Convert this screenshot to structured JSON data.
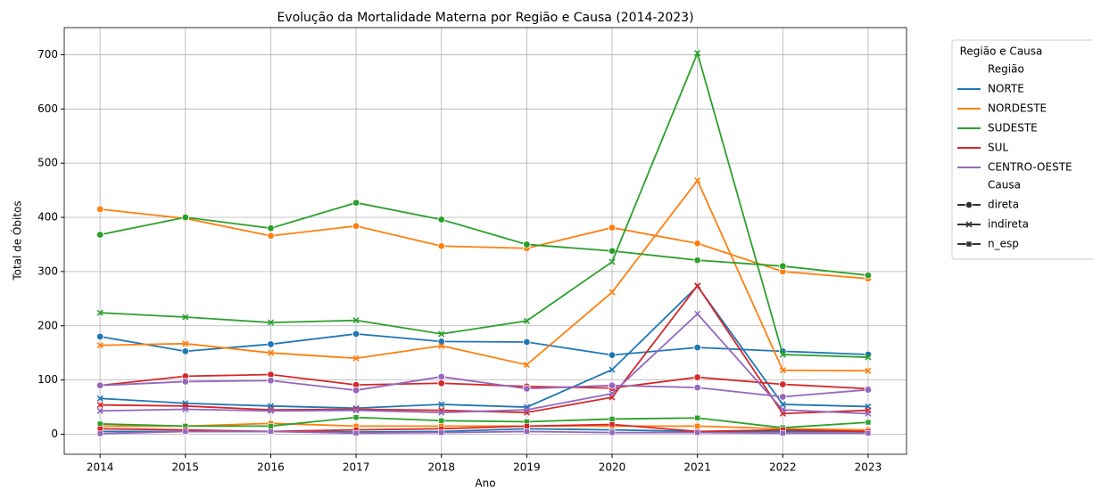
{
  "chart_data": {
    "type": "line",
    "title": "Evolução da Mortalidade Materna por Região e Causa (2014-2023)",
    "x_label": "Ano",
    "y_label": "Total de Óbitos",
    "x": [
      2014,
      2015,
      2016,
      2017,
      2018,
      2019,
      2020,
      2021,
      2022,
      2023
    ],
    "xlim": [
      2013.58,
      2023.45
    ],
    "xticks": [
      2014,
      2015,
      2016,
      2017,
      2018,
      2019,
      2020,
      2021,
      2022,
      2023
    ],
    "ylim": [
      -37,
      750
    ],
    "yticks": [
      0,
      100,
      200,
      300,
      400,
      500,
      600,
      700
    ],
    "grid": true,
    "legend": {
      "title": "Região e Causa",
      "hue_title": "Região",
      "style_title": "Causa",
      "position": "outside upper right"
    },
    "regions": [
      {
        "name": "NORTE",
        "color": "#1f77b4"
      },
      {
        "name": "NORDESTE",
        "color": "#ff7f0e"
      },
      {
        "name": "SUDESTE",
        "color": "#2ca02c"
      },
      {
        "name": "SUL",
        "color": "#d62728"
      },
      {
        "name": "CENTRO-OESTE",
        "color": "#9467bd"
      }
    ],
    "causes": [
      {
        "name": "direta",
        "marker": "circle"
      },
      {
        "name": "indireta",
        "marker": "x"
      },
      {
        "name": "n_esp",
        "marker": "square"
      }
    ],
    "series": [
      {
        "region": "NORTE",
        "cause": "direta",
        "values": [
          180,
          153,
          166,
          185,
          171,
          170,
          146,
          160,
          153,
          147
        ]
      },
      {
        "region": "NORTE",
        "cause": "indireta",
        "values": [
          66,
          57,
          52,
          48,
          55,
          50,
          119,
          273,
          55,
          51
        ]
      },
      {
        "region": "NORTE",
        "cause": "n_esp",
        "values": [
          5,
          5,
          5,
          4,
          5,
          10,
          8,
          5,
          5,
          5
        ]
      },
      {
        "region": "NORDESTE",
        "cause": "direta",
        "values": [
          415,
          398,
          366,
          384,
          347,
          343,
          381,
          352,
          300,
          287
        ]
      },
      {
        "region": "NORDESTE",
        "cause": "indireta",
        "values": [
          164,
          167,
          150,
          140,
          163,
          128,
          262,
          468,
          118,
          117
        ]
      },
      {
        "region": "NORDESTE",
        "cause": "n_esp",
        "values": [
          15,
          15,
          20,
          15,
          15,
          15,
          15,
          15,
          10,
          8
        ]
      },
      {
        "region": "SUDESTE",
        "cause": "direta",
        "values": [
          368,
          400,
          380,
          427,
          396,
          350,
          338,
          321,
          310,
          293
        ]
      },
      {
        "region": "SUDESTE",
        "cause": "indireta",
        "values": [
          224,
          216,
          206,
          210,
          185,
          209,
          318,
          703,
          147,
          142
        ]
      },
      {
        "region": "SUDESTE",
        "cause": "n_esp",
        "values": [
          19,
          15,
          15,
          31,
          25,
          23,
          28,
          30,
          12,
          22
        ]
      },
      {
        "region": "SUL",
        "cause": "direta",
        "values": [
          90,
          107,
          110,
          91,
          94,
          88,
          85,
          105,
          92,
          84
        ]
      },
      {
        "region": "SUL",
        "cause": "indireta",
        "values": [
          54,
          52,
          45,
          46,
          44,
          40,
          68,
          274,
          38,
          44
        ]
      },
      {
        "region": "SUL",
        "cause": "n_esp",
        "values": [
          10,
          8,
          5,
          8,
          10,
          15,
          18,
          5,
          8,
          5
        ]
      },
      {
        "region": "CENTRO-OESTE",
        "cause": "direta",
        "values": [
          90,
          97,
          99,
          81,
          106,
          84,
          90,
          86,
          69,
          82
        ]
      },
      {
        "region": "CENTRO-OESTE",
        "cause": "indireta",
        "values": [
          43,
          46,
          43,
          44,
          40,
          45,
          75,
          222,
          45,
          38
        ]
      },
      {
        "region": "CENTRO-OESTE",
        "cause": "n_esp",
        "values": [
          1,
          5,
          5,
          2,
          3,
          5,
          3,
          3,
          2,
          2
        ]
      }
    ]
  }
}
